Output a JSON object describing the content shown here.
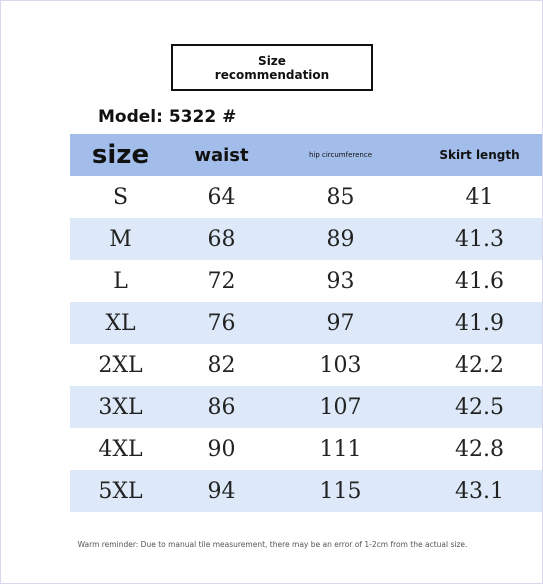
{
  "header": {
    "title": [
      "Size",
      "recommendation"
    ],
    "model": "Model: 5322 #"
  },
  "table": {
    "columns": [
      "size",
      "waist",
      "hip circumference",
      "Skirt length"
    ],
    "rows": [
      [
        "S",
        "64",
        "85",
        "41"
      ],
      [
        "M",
        "68",
        "89",
        "41.3"
      ],
      [
        "L",
        "72",
        "93",
        "41.6"
      ],
      [
        "XL",
        "76",
        "97",
        "41.9"
      ],
      [
        "2XL",
        "82",
        "103",
        "42.2"
      ],
      [
        "3XL",
        "86",
        "107",
        "42.5"
      ],
      [
        "4XL",
        "90",
        "111",
        "42.8"
      ],
      [
        "5XL",
        "94",
        "115",
        "43.1"
      ]
    ]
  },
  "footer": {
    "note": "Warm reminder: Due to manual tile measurement, there may be an error of 1-2cm from the actual size."
  }
}
